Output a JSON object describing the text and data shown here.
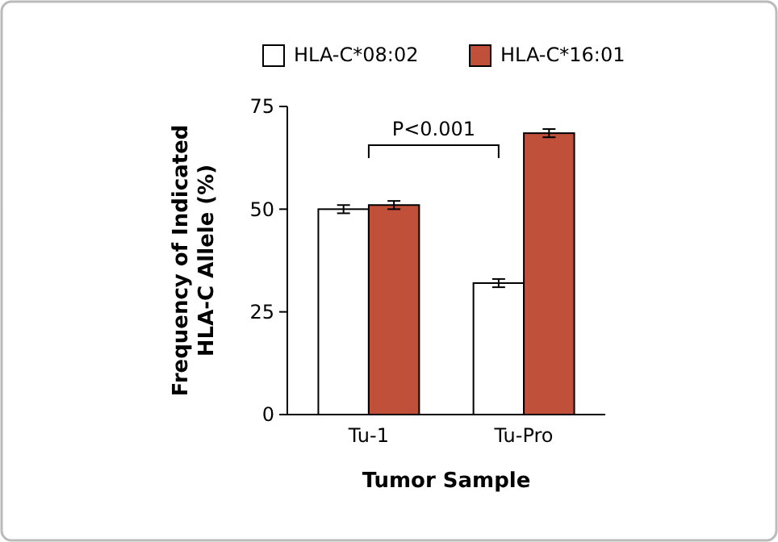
{
  "chart_data": {
    "type": "bar",
    "xlabel": "Tumor Sample",
    "ylabel": "Frequency of Indicated\nHLA-C Allele (%)",
    "categories": [
      "Tu-1",
      "Tu-Pro"
    ],
    "series": [
      {
        "name": "HLA-C*08:02",
        "color": "#ffffff",
        "values": [
          50,
          32
        ],
        "errors": [
          1,
          1
        ]
      },
      {
        "name": "HLA-C*16:01",
        "color": "#c0503a",
        "values": [
          51,
          68.5
        ],
        "errors": [
          1,
          1
        ]
      }
    ],
    "ylim": [
      0,
      75
    ],
    "yticks": [
      0,
      25,
      50,
      75
    ],
    "grid": false,
    "legend": "top",
    "annotations": [
      "P<0.001"
    ]
  }
}
